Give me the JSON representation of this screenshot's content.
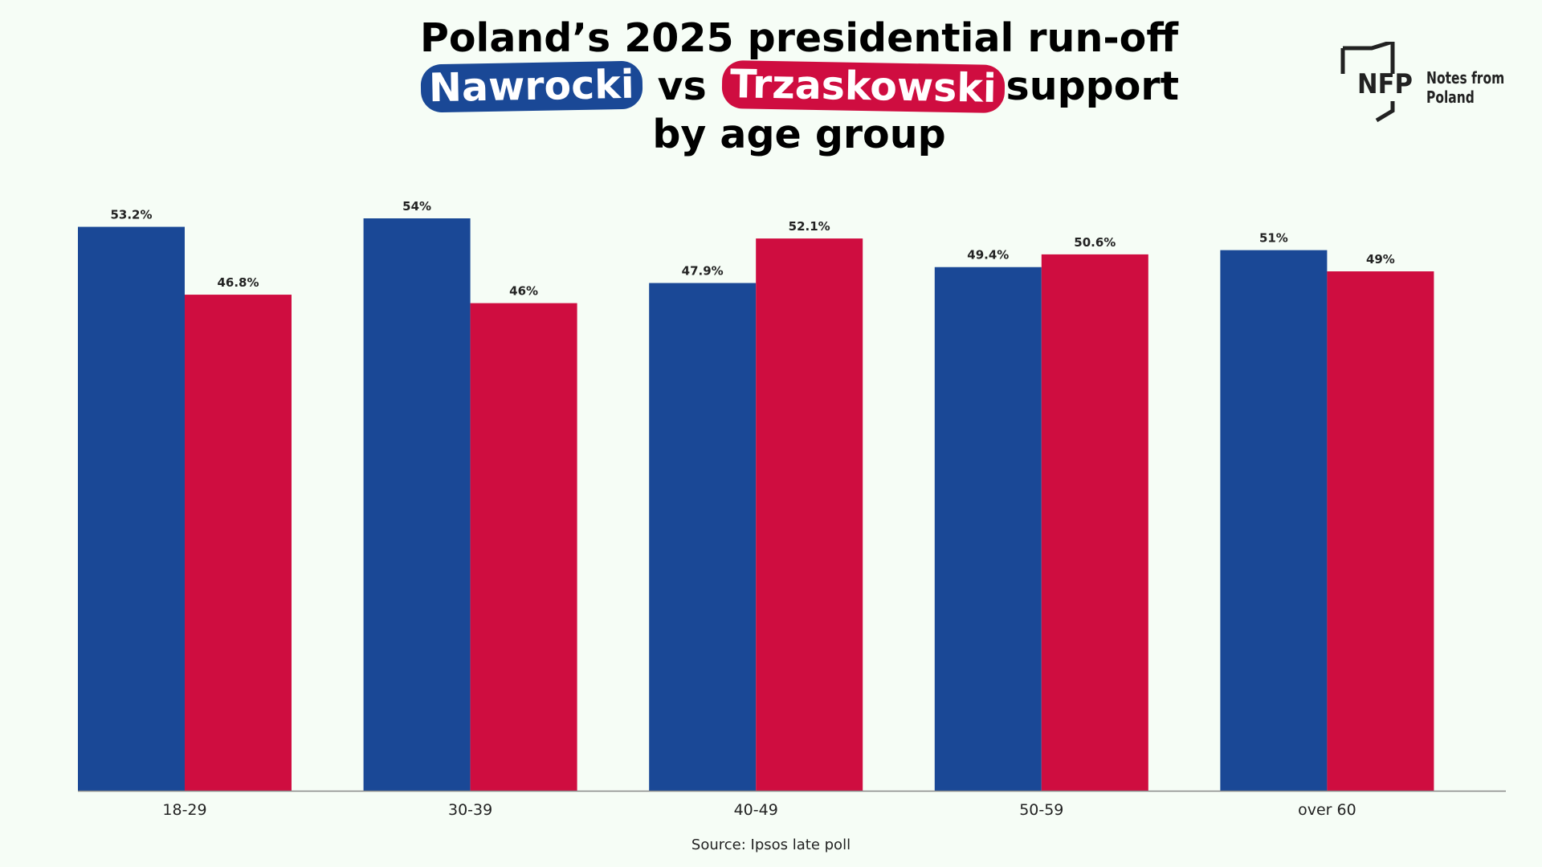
{
  "title": {
    "line1": "Poland’s 2025 presidential run-off",
    "candidate_a": "Nawrocki",
    "vs": "vs",
    "candidate_b": "Trzaskowski",
    "support": "support",
    "line3": "by age group"
  },
  "logo": {
    "mark": "NFP",
    "line1": "Notes from",
    "line2": "Poland"
  },
  "source": "Source: Ipsos late poll",
  "colors": {
    "nawrocki": "#1a4896",
    "trzaskowski": "#cf0d40",
    "background": "#f6fdf6",
    "axis": "#888888",
    "label": "#222222"
  },
  "chart_data": {
    "type": "bar",
    "categories": [
      "18-29",
      "30-39",
      "40-49",
      "50-59",
      "over 60"
    ],
    "series": [
      {
        "name": "Nawrocki",
        "values": [
          53.2,
          54,
          47.9,
          49.4,
          51
        ],
        "labels": [
          "53.2%",
          "54%",
          "47.9%",
          "49.4%",
          "51%"
        ]
      },
      {
        "name": "Trzaskowski",
        "values": [
          46.8,
          46,
          52.1,
          50.6,
          49
        ],
        "labels": [
          "46.8%",
          "46%",
          "52.1%",
          "50.6%",
          "49%"
        ]
      }
    ],
    "ylim": [
      0,
      54
    ],
    "grid": false,
    "legend": "none"
  }
}
